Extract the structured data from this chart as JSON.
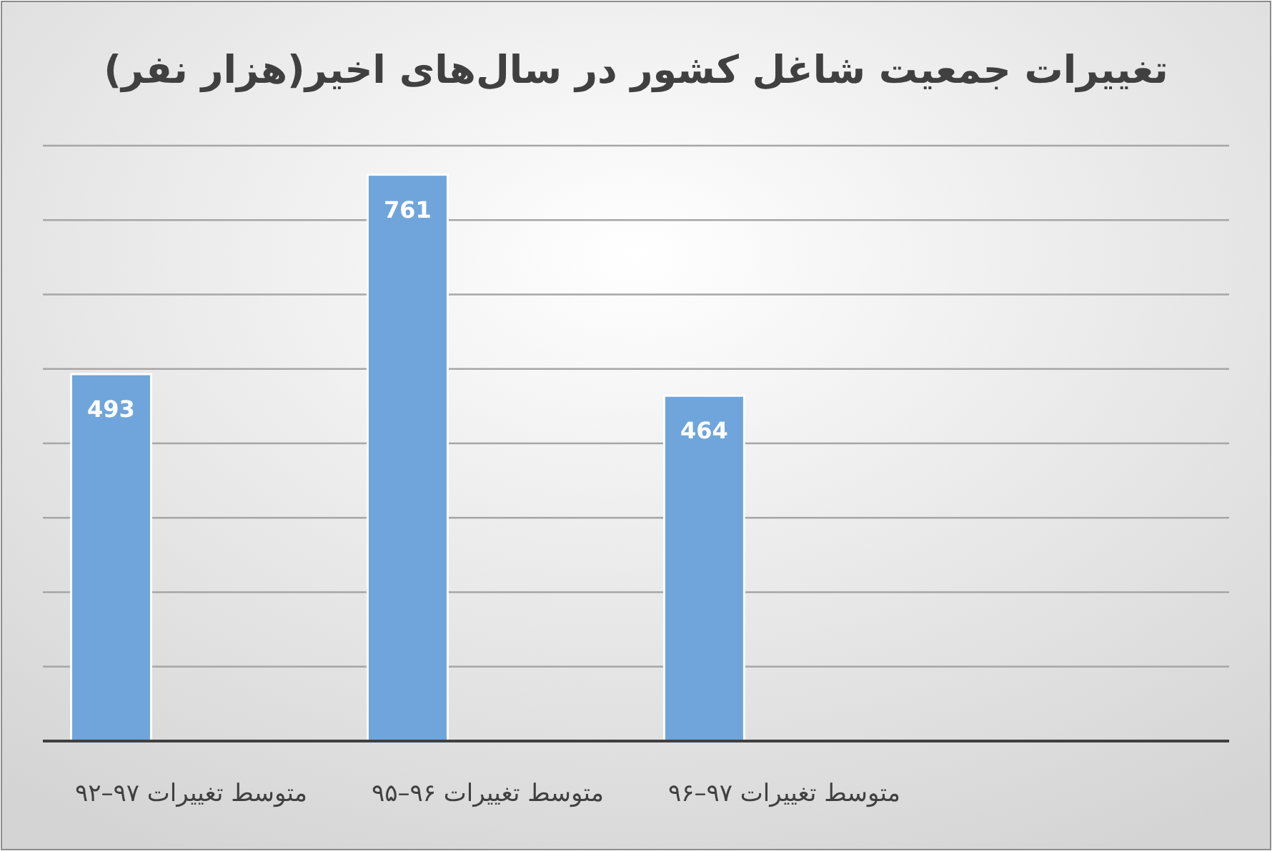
{
  "chart_data": {
    "type": "bar",
    "title": "تغییرات جمعیت شاغل کشور در سال‌های اخیر(هزار نفر)",
    "categories": [
      "متوسط تغییرات ۹۷–۹۲",
      "متوسط تغییرات ۹۶–۹۵",
      "متوسط تغییرات ۹۷–۹۶",
      null
    ],
    "values": [
      493,
      761,
      464,
      null
    ],
    "color": "#6fa5db",
    "data_labels": true,
    "ylim": [
      0,
      800
    ],
    "yticks": [
      {
        "value": 0,
        "label": null
      },
      {
        "value": 100,
        "label": null
      },
      {
        "value": 200,
        "label": null
      },
      {
        "value": 300,
        "label": null
      },
      {
        "value": 400,
        "label": null
      },
      {
        "value": 500,
        "label": null
      },
      {
        "value": 600,
        "label": null
      },
      {
        "value": 700,
        "label": null
      },
      {
        "value": 800,
        "label": null
      }
    ],
    "grid": "y",
    "tick_labels": "x"
  }
}
